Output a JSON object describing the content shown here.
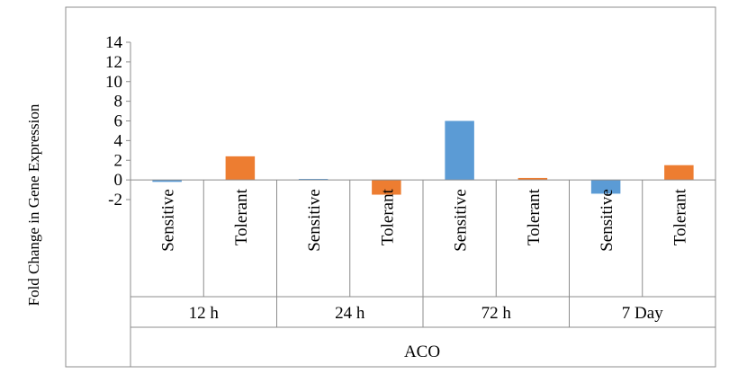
{
  "chart_data": {
    "type": "bar",
    "ylabel": "Fold Change in Gene Expression",
    "y_ticks": [
      "-2",
      "0",
      "2",
      "4",
      "6",
      "8",
      "10",
      "12",
      "14"
    ],
    "ylim": [
      -2,
      14
    ],
    "group_label": "ACO",
    "groups": [
      {
        "label": "12 h",
        "bars": [
          {
            "category": "Sensitive",
            "value": -0.2,
            "color": "#5B9BD5"
          },
          {
            "category": "Tolerant",
            "value": 2.4,
            "color": "#ED7D31"
          }
        ]
      },
      {
        "label": "24 h",
        "bars": [
          {
            "category": "Sensitive",
            "value": 0.1,
            "color": "#5B9BD5"
          },
          {
            "category": "Tolerant",
            "value": -1.5,
            "color": "#ED7D31"
          }
        ]
      },
      {
        "label": "72 h",
        "bars": [
          {
            "category": "Sensitive",
            "value": 6.0,
            "color": "#5B9BD5"
          },
          {
            "category": "Tolerant",
            "value": 0.2,
            "color": "#ED7D31"
          }
        ]
      },
      {
        "label": "7 Day",
        "bars": [
          {
            "category": "Sensitive",
            "value": -1.4,
            "color": "#5B9BD5"
          },
          {
            "category": "Tolerant",
            "value": 1.5,
            "color": "#ED7D31"
          }
        ]
      }
    ]
  }
}
